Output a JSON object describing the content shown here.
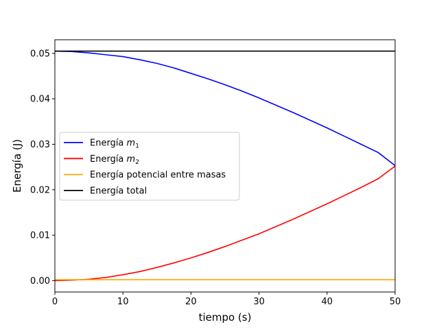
{
  "chart_data": {
    "type": "line",
    "xlabel": "tiempo (s)",
    "ylabel": "Energía (J)",
    "xlim": [
      0,
      50
    ],
    "ylim": [
      -0.0025,
      0.053
    ],
    "xticks": [
      0,
      10,
      20,
      30,
      40,
      50
    ],
    "xtick_labels": [
      "0",
      "10",
      "20",
      "30",
      "40",
      "50"
    ],
    "yticks": [
      0.0,
      0.01,
      0.02,
      0.03,
      0.04,
      0.05
    ],
    "ytick_labels": [
      "0.00",
      "0.01",
      "0.02",
      "0.03",
      "0.04",
      "0.05"
    ],
    "grid": false,
    "legend_position": "center-left",
    "x": [
      0,
      2.5,
      5,
      7.5,
      10,
      12.5,
      15,
      17.5,
      20,
      22.5,
      25,
      27.5,
      30,
      32.5,
      35,
      37.5,
      40,
      42.5,
      45,
      47.5,
      50
    ],
    "series": [
      {
        "name": "Energía m1",
        "legend_text": "Energía ",
        "legend_math": "m",
        "legend_sub": "1",
        "color": "#0000ff",
        "values": [
          0.0505,
          0.0504,
          0.0501,
          0.0497,
          0.0493,
          0.0486,
          0.0478,
          0.0468,
          0.0456,
          0.0444,
          0.0431,
          0.0417,
          0.0402,
          0.0386,
          0.037,
          0.0353,
          0.0336,
          0.0318,
          0.03,
          0.0282,
          0.0253
        ]
      },
      {
        "name": "Energía m2",
        "legend_text": "Energía ",
        "legend_math": "m",
        "legend_sub": "2",
        "color": "#ff0000",
        "values": [
          0.0,
          0.0001,
          0.0003,
          0.0007,
          0.0013,
          0.002,
          0.0029,
          0.0039,
          0.005,
          0.0062,
          0.0075,
          0.0089,
          0.0103,
          0.0119,
          0.0135,
          0.0152,
          0.0169,
          0.0187,
          0.0205,
          0.0224,
          0.0252
        ]
      },
      {
        "name": "Energía potencial entre masas",
        "legend_text": "Energía potencial entre masas",
        "color": "#ffa500",
        "values": [
          0.0002,
          0.0002,
          0.0002,
          0.0002,
          0.0002,
          0.0002,
          0.0002,
          0.0002,
          0.0002,
          0.0002,
          0.0002,
          0.0002,
          0.0002,
          0.0002,
          0.0002,
          0.0002,
          0.0002,
          0.0002,
          0.0002,
          0.0002,
          0.0002
        ]
      },
      {
        "name": "Energía total",
        "legend_text": "Energía total",
        "color": "#000000",
        "values": [
          0.0505,
          0.0505,
          0.0505,
          0.0505,
          0.0505,
          0.0505,
          0.0505,
          0.0505,
          0.0505,
          0.0505,
          0.0505,
          0.0505,
          0.0505,
          0.0505,
          0.0505,
          0.0505,
          0.0505,
          0.0505,
          0.0505,
          0.0505,
          0.0505
        ]
      }
    ]
  }
}
